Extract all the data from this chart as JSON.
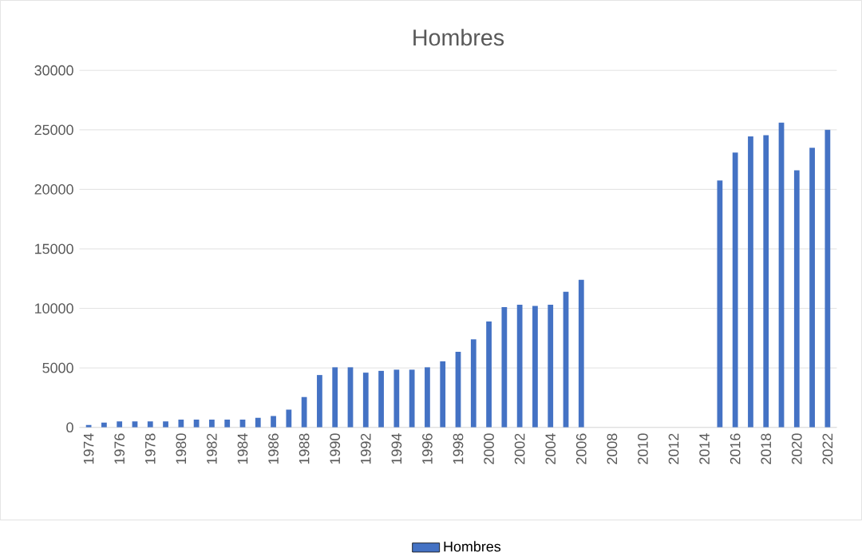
{
  "chart_data": {
    "type": "bar",
    "title": "Hombres",
    "categories": [
      "1974",
      null,
      "1976",
      null,
      "1978",
      null,
      "1980",
      null,
      "1982",
      null,
      "1984",
      null,
      "1986",
      null,
      "1988",
      null,
      "1990",
      null,
      "1992",
      null,
      "1994",
      null,
      "1996",
      null,
      "1998",
      null,
      "2000",
      null,
      "2002",
      null,
      "2004",
      null,
      "2006",
      null,
      "2008",
      null,
      "2010",
      null,
      "2012",
      null,
      "2014",
      null,
      "2016",
      null,
      "2018",
      null,
      "2020",
      null,
      "2022"
    ],
    "series": [
      {
        "name": "Hombres",
        "color": "#4472c4",
        "values": [
          200,
          400,
          500,
          500,
          500,
          500,
          650,
          650,
          650,
          650,
          650,
          800,
          950,
          1500,
          2550,
          4400,
          5050,
          5050,
          4600,
          4750,
          4850,
          4850,
          5050,
          5550,
          6350,
          7400,
          8900,
          10100,
          10300,
          10200,
          10300,
          11400,
          12400,
          null,
          null,
          null,
          null,
          null,
          null,
          null,
          null,
          20750,
          23100,
          24450,
          24550,
          25600,
          21600,
          23500,
          25000
        ]
      }
    ],
    "ylim": [
      0,
      30000
    ],
    "yticks": [
      0,
      5000,
      10000,
      15000,
      20000,
      25000,
      30000
    ],
    "grid": "y",
    "legend": "bottom"
  }
}
